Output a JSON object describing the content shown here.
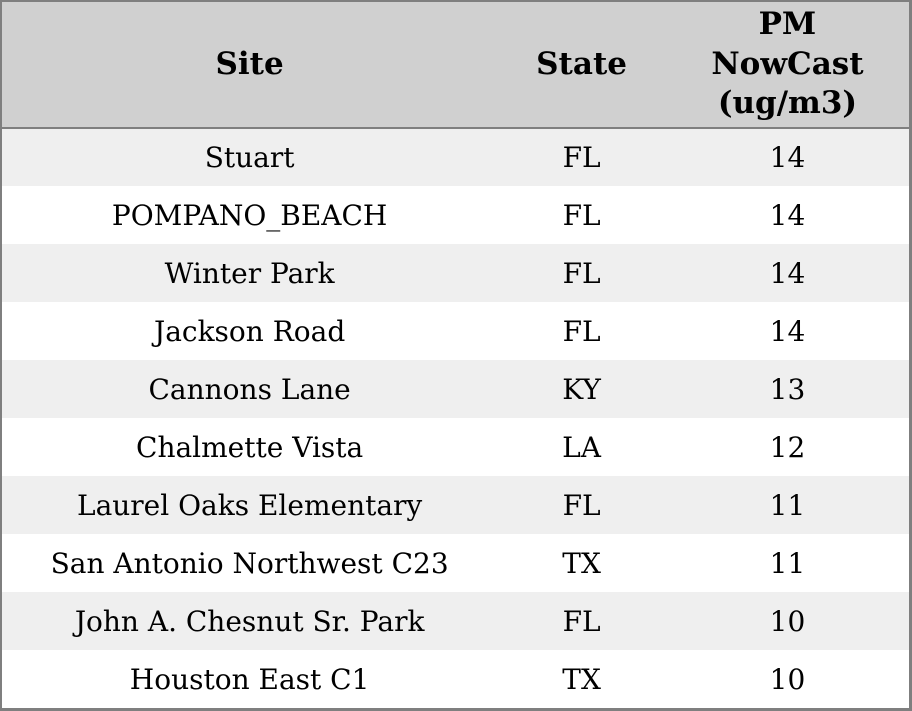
{
  "colors": {
    "header_bg": "#d0d0d0",
    "row_stripe_bg": "#efefef",
    "row_bg": "#ffffff",
    "border": "#7f7f7f",
    "text": "#000000"
  },
  "table": {
    "columns": [
      {
        "label": "Site"
      },
      {
        "label": "State"
      },
      {
        "label": "PM NowCast (ug/m3)"
      }
    ],
    "rows": [
      {
        "site": "Stuart",
        "state": "FL",
        "pm": "14"
      },
      {
        "site": "POMPANO_BEACH",
        "state": "FL",
        "pm": "14"
      },
      {
        "site": "Winter Park",
        "state": "FL",
        "pm": "14"
      },
      {
        "site": "Jackson Road",
        "state": "FL",
        "pm": "14"
      },
      {
        "site": "Cannons Lane",
        "state": "KY",
        "pm": "13"
      },
      {
        "site": "Chalmette Vista",
        "state": "LA",
        "pm": "12"
      },
      {
        "site": "Laurel Oaks Elementary",
        "state": "FL",
        "pm": "11"
      },
      {
        "site": "San Antonio Northwest C23",
        "state": "TX",
        "pm": "11"
      },
      {
        "site": "John A. Chesnut Sr. Park",
        "state": "FL",
        "pm": "10"
      },
      {
        "site": "Houston East C1",
        "state": "TX",
        "pm": "10"
      }
    ]
  },
  "chart_data": {
    "type": "table",
    "title": "",
    "columns": [
      "Site",
      "State",
      "PM NowCast (ug/m3)"
    ],
    "rows": [
      [
        "Stuart",
        "FL",
        14
      ],
      [
        "POMPANO_BEACH",
        "FL",
        14
      ],
      [
        "Winter Park",
        "FL",
        14
      ],
      [
        "Jackson Road",
        "FL",
        14
      ],
      [
        "Cannons Lane",
        "KY",
        13
      ],
      [
        "Chalmette Vista",
        "LA",
        12
      ],
      [
        "Laurel Oaks Elementary",
        "FL",
        11
      ],
      [
        "San Antonio Northwest C23",
        "TX",
        11
      ],
      [
        "John A. Chesnut Sr. Park",
        "FL",
        10
      ],
      [
        "Houston East C1",
        "TX",
        10
      ]
    ],
    "layout": {
      "header_row": true,
      "row_striping": "odd-rows-gray",
      "alignment": "center"
    }
  }
}
